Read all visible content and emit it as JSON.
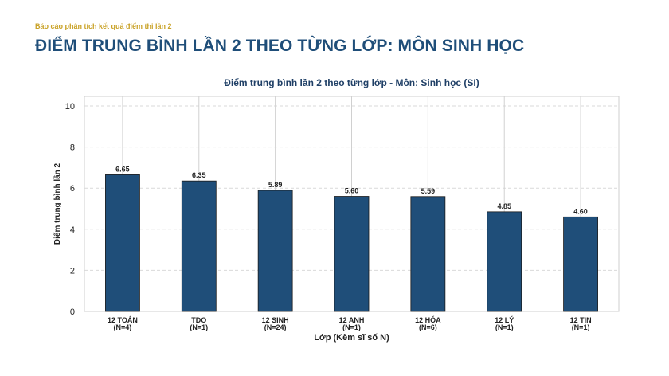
{
  "header": {
    "kicker": "Báo cáo phân tích kết quả điểm thi lần 2",
    "title": "ĐIỂM TRUNG BÌNH LẦN 2 THEO TỪNG LỚP: MÔN SINH HỌC"
  },
  "colors": {
    "bar": "#1f4e79",
    "accent": "#c9a227",
    "title": "#1f4e79"
  },
  "chart_data": {
    "type": "bar",
    "title": "Điểm trung bình lần 2 theo từng lớp - Môn: Sinh học (SI)",
    "xlabel": "Lớp (Kèm sĩ số N)",
    "ylabel": "Điểm trung bình lần 2",
    "ylim": [
      0,
      10
    ],
    "yticks": [
      0,
      2,
      4,
      6,
      8,
      10
    ],
    "grid": true,
    "categories": [
      "12 TOÁN",
      "TDO",
      "12 SINH",
      "12 ANH",
      "12 HÓA",
      "12 LÝ",
      "12 TIN"
    ],
    "category_counts": [
      "(N=4)",
      "(N=1)",
      "(N=24)",
      "(N=1)",
      "(N=6)",
      "(N=1)",
      "(N=1)"
    ],
    "values": [
      6.65,
      6.35,
      5.89,
      5.6,
      5.59,
      4.85,
      4.6
    ],
    "value_labels": [
      "6.65",
      "6.35",
      "5.89",
      "5.60",
      "5.59",
      "4.85",
      "4.60"
    ]
  }
}
